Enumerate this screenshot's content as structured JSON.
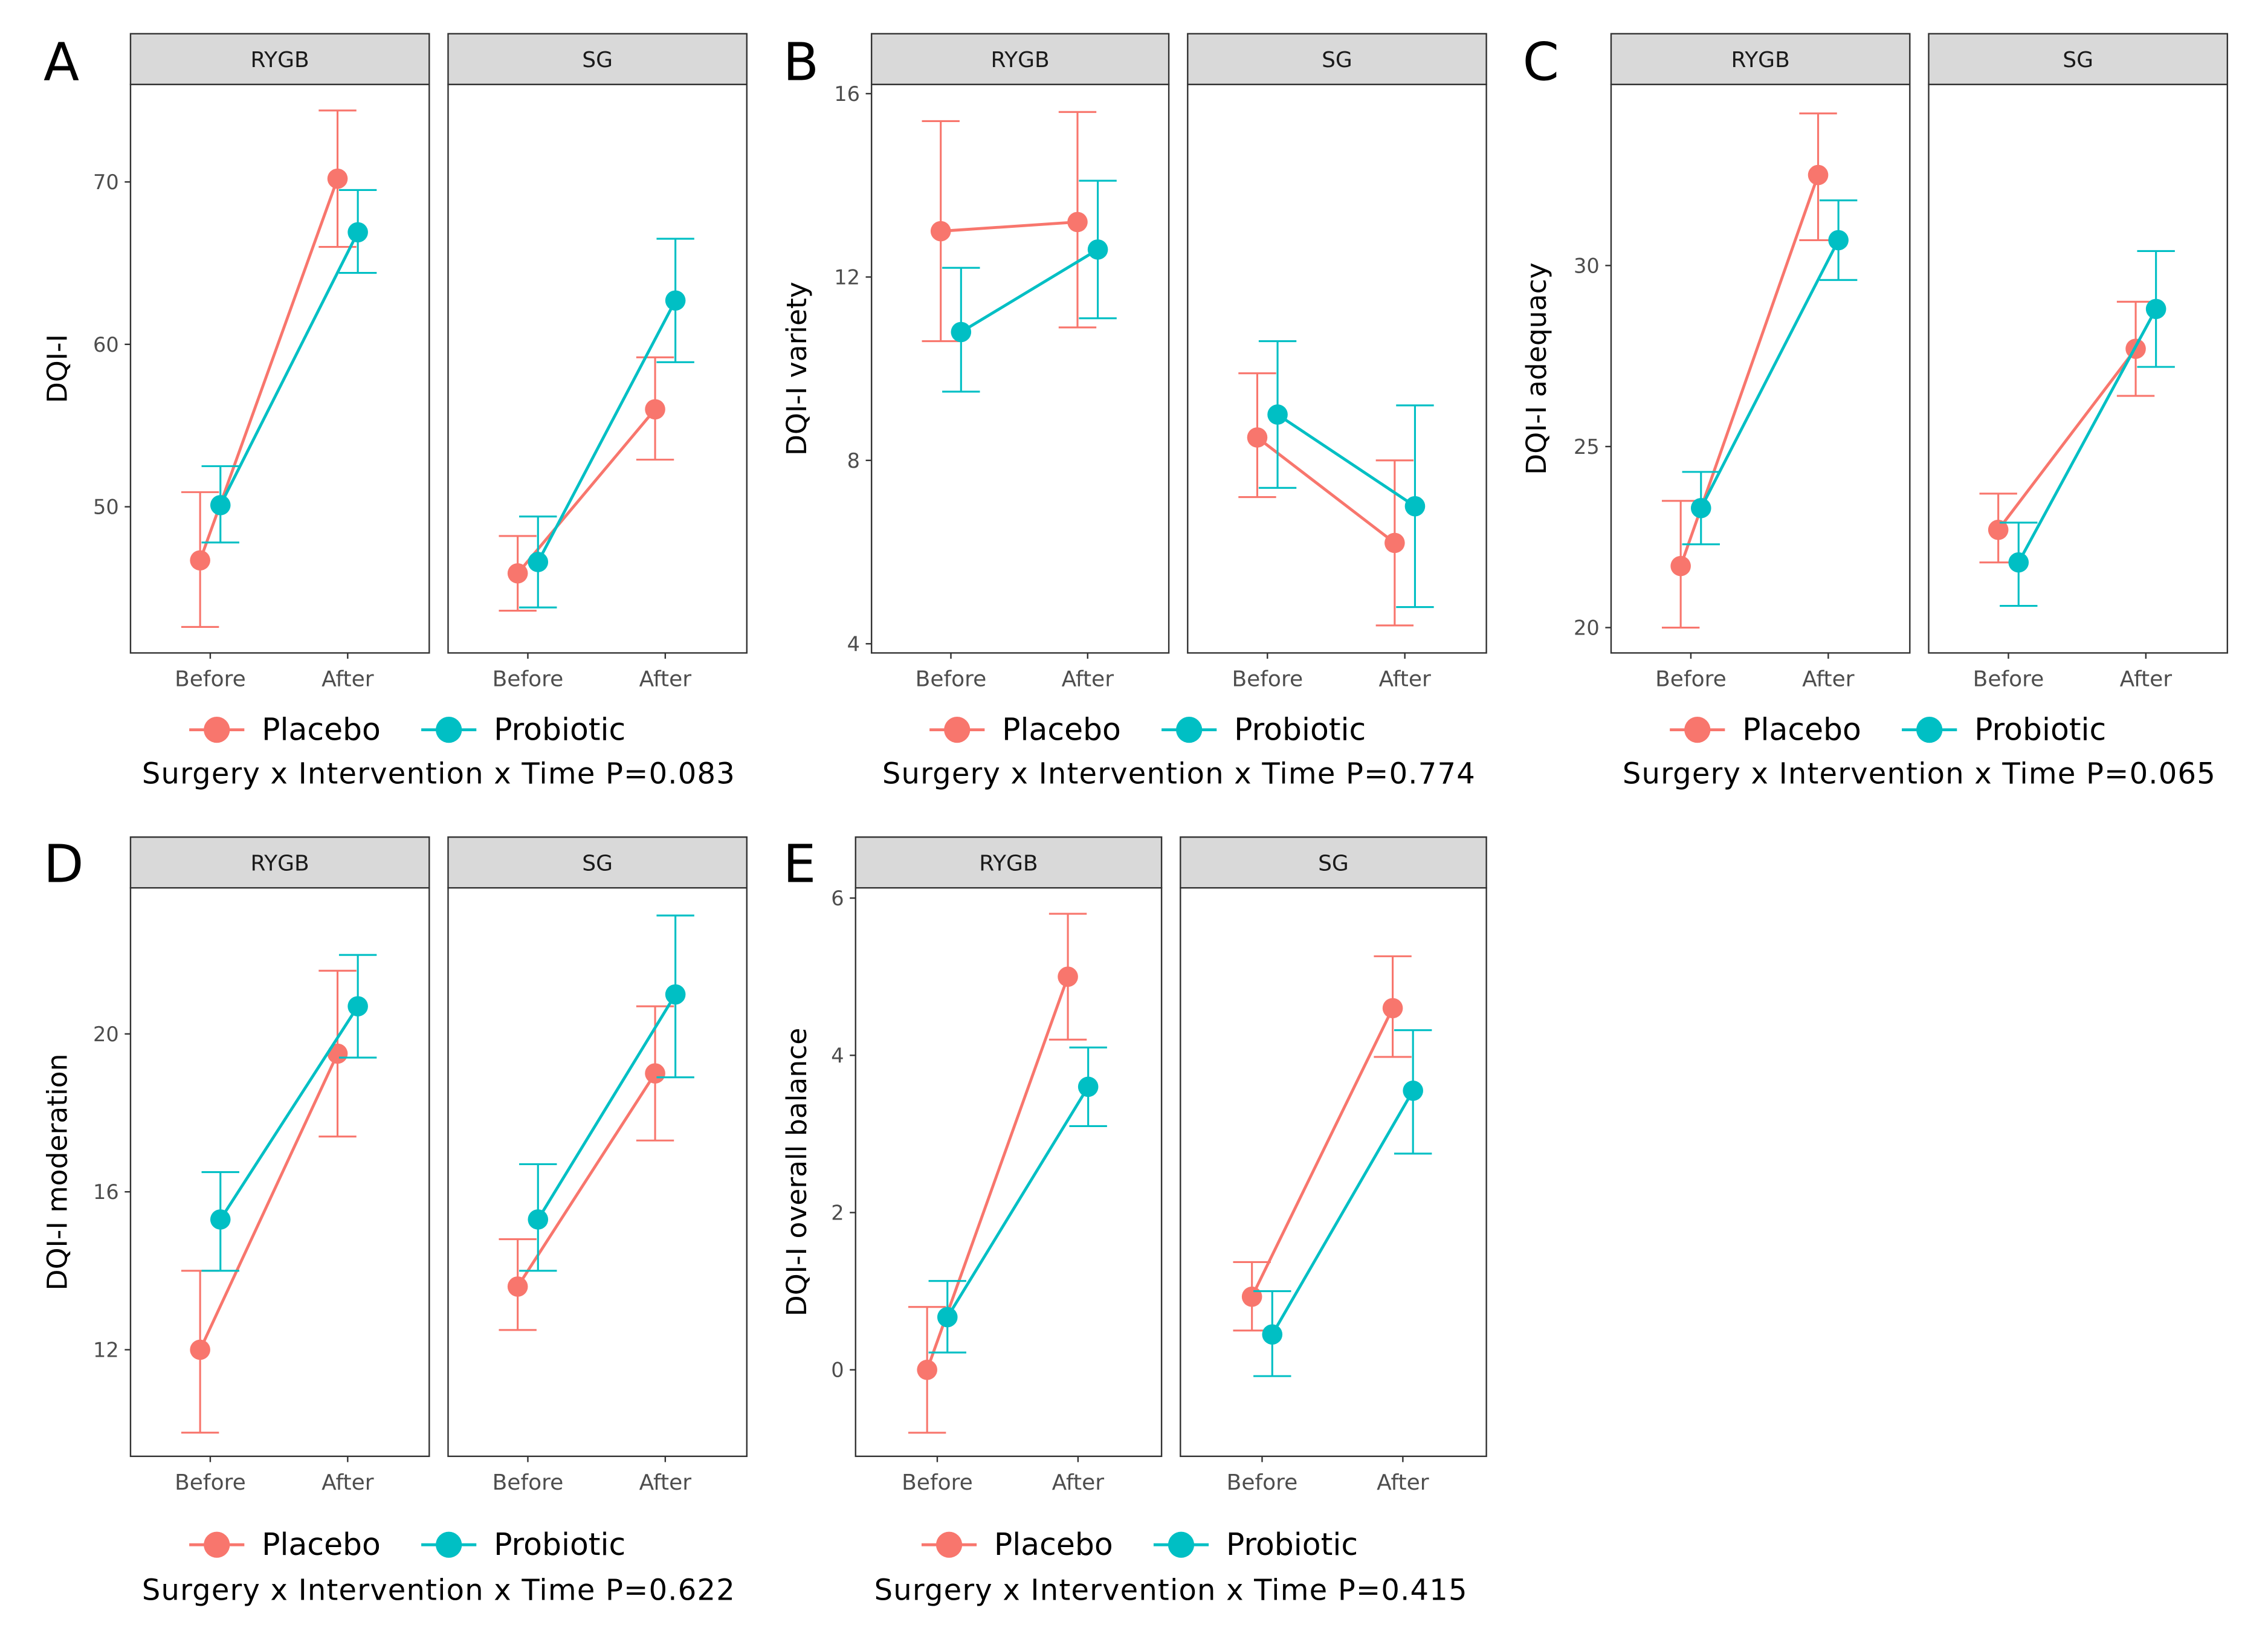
{
  "colors": {
    "Placebo": "#F8766D",
    "Probiotic": "#00BFC4"
  },
  "legend": [
    "Placebo",
    "Probiotic"
  ],
  "chart_data": [
    {
      "type": "line",
      "panel": "A",
      "ylabel": "DQI-I",
      "yticks": [
        50,
        60,
        70
      ],
      "ylim": [
        41,
        76
      ],
      "categories": [
        "Before",
        "After"
      ],
      "facets": [
        "RYGB",
        "SG"
      ],
      "caption": "Surgery x Intervention x Time P=0.083",
      "series": [
        {
          "name": "Placebo",
          "facet": "RYGB",
          "values": [
            46.7,
            70.2
          ],
          "lower": [
            42.6,
            66.0
          ],
          "upper": [
            50.9,
            74.4
          ]
        },
        {
          "name": "Probiotic",
          "facet": "RYGB",
          "values": [
            50.1,
            66.9
          ],
          "lower": [
            47.8,
            64.4
          ],
          "upper": [
            52.5,
            69.5
          ]
        },
        {
          "name": "Placebo",
          "facet": "SG",
          "values": [
            45.9,
            56.0
          ],
          "lower": [
            43.6,
            52.9
          ],
          "upper": [
            48.2,
            59.2
          ]
        },
        {
          "name": "Probiotic",
          "facet": "SG",
          "values": [
            46.6,
            62.7
          ],
          "lower": [
            43.8,
            58.9
          ],
          "upper": [
            49.4,
            66.5
          ]
        }
      ]
    },
    {
      "type": "line",
      "panel": "B",
      "ylabel": "DQI-I variety",
      "yticks": [
        4,
        8,
        12,
        16
      ],
      "ylim": [
        3.8,
        16.2
      ],
      "categories": [
        "Before",
        "After"
      ],
      "facets": [
        "RYGB",
        "SG"
      ],
      "caption": "Surgery x Intervention x Time P=0.774",
      "series": [
        {
          "name": "Placebo",
          "facet": "RYGB",
          "values": [
            13.0,
            13.2
          ],
          "lower": [
            10.6,
            10.9
          ],
          "upper": [
            15.4,
            15.6
          ]
        },
        {
          "name": "Probiotic",
          "facet": "RYGB",
          "values": [
            10.8,
            12.6
          ],
          "lower": [
            9.5,
            11.1
          ],
          "upper": [
            12.2,
            14.1
          ]
        },
        {
          "name": "Placebo",
          "facet": "SG",
          "values": [
            8.5,
            6.2
          ],
          "lower": [
            7.2,
            4.4
          ],
          "upper": [
            9.9,
            8.0
          ]
        },
        {
          "name": "Probiotic",
          "facet": "SG",
          "values": [
            9.0,
            7.0
          ],
          "lower": [
            7.4,
            4.8
          ],
          "upper": [
            10.6,
            9.2
          ]
        }
      ]
    },
    {
      "type": "line",
      "panel": "C",
      "ylabel": "DQI-I adequacy",
      "yticks": [
        20,
        25,
        30
      ],
      "ylim": [
        19.3,
        35
      ],
      "categories": [
        "Before",
        "After"
      ],
      "facets": [
        "RYGB",
        "SG"
      ],
      "caption": "Surgery x Intervention x Time P=0.065",
      "series": [
        {
          "name": "Placebo",
          "facet": "RYGB",
          "values": [
            21.7,
            32.5
          ],
          "lower": [
            20.0,
            30.7
          ],
          "upper": [
            23.5,
            34.2
          ]
        },
        {
          "name": "Probiotic",
          "facet": "RYGB",
          "values": [
            23.3,
            30.7
          ],
          "lower": [
            22.3,
            29.6
          ],
          "upper": [
            24.3,
            31.8
          ]
        },
        {
          "name": "Placebo",
          "facet": "SG",
          "values": [
            22.7,
            27.7
          ],
          "lower": [
            21.8,
            26.4
          ],
          "upper": [
            23.7,
            29.0
          ]
        },
        {
          "name": "Probiotic",
          "facet": "SG",
          "values": [
            21.8,
            28.8
          ],
          "lower": [
            20.6,
            27.2
          ],
          "upper": [
            22.9,
            30.4
          ]
        }
      ]
    },
    {
      "type": "line",
      "panel": "D",
      "ylabel": "DQI-I moderation",
      "yticks": [
        12,
        16,
        20
      ],
      "ylim": [
        9.3,
        23.7
      ],
      "categories": [
        "Before",
        "After"
      ],
      "facets": [
        "RYGB",
        "SG"
      ],
      "caption": "Surgery x Intervention x Time P=0.622",
      "series": [
        {
          "name": "Placebo",
          "facet": "RYGB",
          "values": [
            12.0,
            19.5
          ],
          "lower": [
            9.9,
            17.4
          ],
          "upper": [
            14.0,
            21.6
          ]
        },
        {
          "name": "Probiotic",
          "facet": "RYGB",
          "values": [
            15.3,
            20.7
          ],
          "lower": [
            14.0,
            19.4
          ],
          "upper": [
            16.5,
            22.0
          ]
        },
        {
          "name": "Placebo",
          "facet": "SG",
          "values": [
            13.6,
            19.0
          ],
          "lower": [
            12.5,
            17.3
          ],
          "upper": [
            14.8,
            20.7
          ]
        },
        {
          "name": "Probiotic",
          "facet": "SG",
          "values": [
            15.3,
            21.0
          ],
          "lower": [
            14.0,
            18.9
          ],
          "upper": [
            16.7,
            23.0
          ]
        }
      ]
    },
    {
      "type": "line",
      "panel": "E",
      "ylabel": "DQI-I overall balance",
      "yticks": [
        0,
        2,
        4,
        6
      ],
      "ylim": [
        -1.1,
        6.13
      ],
      "categories": [
        "Before",
        "After"
      ],
      "facets": [
        "RYGB",
        "SG"
      ],
      "caption": "Surgery x Intervention x Time P=0.415",
      "series": [
        {
          "name": "Placebo",
          "facet": "RYGB",
          "values": [
            0.0,
            5.0
          ],
          "lower": [
            -0.8,
            4.2
          ],
          "upper": [
            0.8,
            5.8
          ]
        },
        {
          "name": "Probiotic",
          "facet": "RYGB",
          "values": [
            0.67,
            3.6
          ],
          "lower": [
            0.22,
            3.1
          ],
          "upper": [
            1.13,
            4.1
          ]
        },
        {
          "name": "Placebo",
          "facet": "SG",
          "values": [
            0.93,
            4.6
          ],
          "lower": [
            0.5,
            3.98
          ],
          "upper": [
            1.37,
            5.26
          ]
        },
        {
          "name": "Probiotic",
          "facet": "SG",
          "values": [
            0.45,
            3.55
          ],
          "lower": [
            -0.08,
            2.75
          ],
          "upper": [
            1.0,
            4.32
          ]
        }
      ]
    }
  ]
}
